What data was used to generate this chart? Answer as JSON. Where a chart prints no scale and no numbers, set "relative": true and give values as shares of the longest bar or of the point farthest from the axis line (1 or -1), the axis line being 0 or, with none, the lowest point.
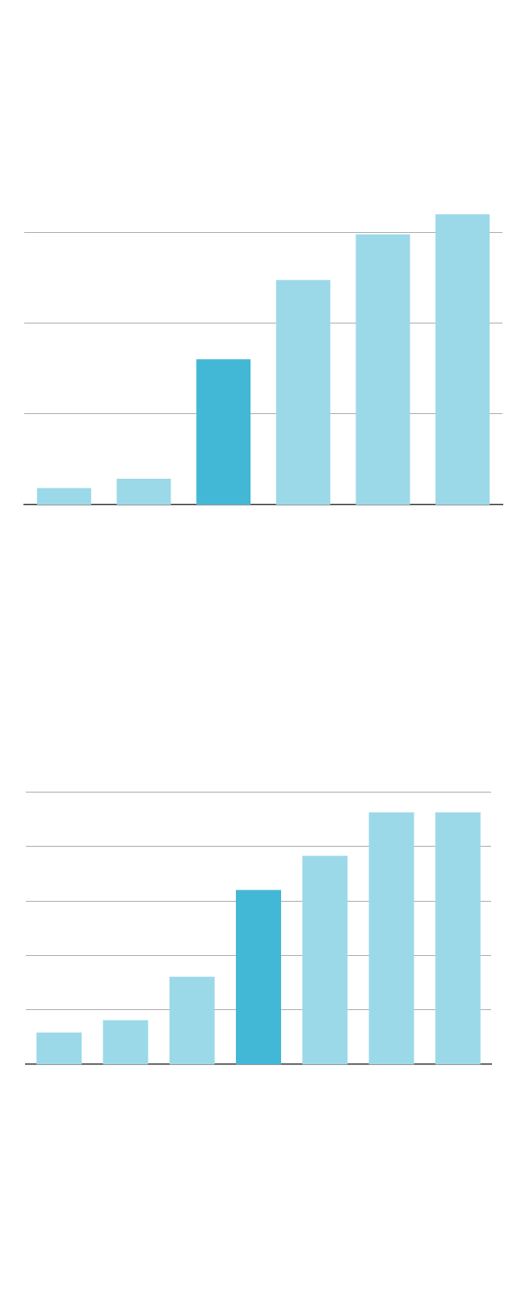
{
  "chart_data": [
    {
      "type": "bar",
      "relative": true,
      "categories": [
        null,
        null,
        null,
        null,
        null,
        null
      ],
      "values": [
        0.057,
        0.089,
        0.501,
        0.774,
        0.931,
        1
      ],
      "colors": [
        "#9cd9e8",
        "#9cd9e8",
        "#43b8d6",
        "#9cd9e8",
        "#9cd9e8",
        "#9cd9e8"
      ],
      "grid": "y",
      "tick_labels": false
    },
    {
      "type": "bar",
      "relative": true,
      "categories": [
        null,
        null,
        null,
        null,
        null,
        null,
        null
      ],
      "values": [
        0.126,
        0.175,
        0.348,
        0.692,
        0.828,
        1,
        1
      ],
      "colors": [
        "#9cd9e8",
        "#9cd9e8",
        "#9cd9e8",
        "#43b8d6",
        "#9cd9e8",
        "#9cd9e8",
        "#9cd9e8"
      ],
      "grid": "y",
      "tick_labels": false
    }
  ]
}
